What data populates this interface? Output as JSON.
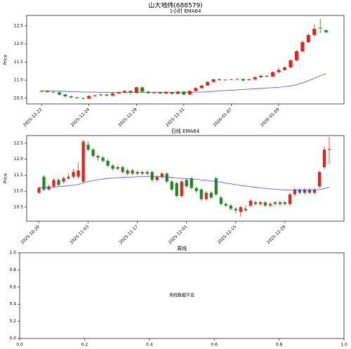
{
  "title": "山大地纬(688579)",
  "chart_data": [
    {
      "type": "candlestick",
      "title": "1小时 EMA64",
      "ylabel": "Price",
      "categories": [
        "2025-12-22",
        null,
        null,
        null,
        null,
        null,
        null,
        null,
        "2025-12-24",
        null,
        null,
        null,
        null,
        null,
        null,
        null,
        "2025-12-29",
        null,
        null,
        null,
        null,
        null,
        null,
        null,
        "2025-12-31",
        null,
        null,
        null,
        null,
        null,
        null,
        null,
        "2026-01-07",
        null,
        null,
        null,
        null,
        null,
        null,
        null,
        "2026-01-09",
        null,
        null,
        null,
        null,
        null,
        null,
        null,
        null
      ],
      "up_color": "#e8201a",
      "down_color": "#1a8a1a",
      "open": [
        10.68,
        10.7,
        10.67,
        10.66,
        10.6,
        10.55,
        10.52,
        10.5,
        10.49,
        10.56,
        10.58,
        10.6,
        10.57,
        10.63,
        10.66,
        10.7,
        10.65,
        10.8,
        10.68,
        10.64,
        10.66,
        10.63,
        10.67,
        10.62,
        10.68,
        10.6,
        10.7,
        10.78,
        10.85,
        10.95,
        11.02,
        11.0,
        11.01,
        11.02,
        11.03,
        11.0,
        11.02,
        11.08,
        11.12,
        11.1,
        11.22,
        11.28,
        11.35,
        11.55,
        11.8,
        12.05,
        12.25,
        12.45,
        12.38
      ],
      "high": [
        10.72,
        10.71,
        10.69,
        10.67,
        10.62,
        10.57,
        10.54,
        10.52,
        10.58,
        10.6,
        10.62,
        10.62,
        10.65,
        10.68,
        10.72,
        10.72,
        10.82,
        10.81,
        10.7,
        10.68,
        10.68,
        10.69,
        10.68,
        10.7,
        10.7,
        10.72,
        10.8,
        10.87,
        10.97,
        11.04,
        11.04,
        11.03,
        11.04,
        11.05,
        11.04,
        11.05,
        11.1,
        11.15,
        11.14,
        11.25,
        11.35,
        11.38,
        11.58,
        11.83,
        12.1,
        12.3,
        12.55,
        12.7,
        12.4
      ],
      "low": [
        10.66,
        10.65,
        10.64,
        10.58,
        10.53,
        10.5,
        10.48,
        10.47,
        10.48,
        10.54,
        10.56,
        10.55,
        10.56,
        10.61,
        10.64,
        10.6,
        10.63,
        10.66,
        10.62,
        10.62,
        10.61,
        10.62,
        10.6,
        10.61,
        10.58,
        10.59,
        10.69,
        10.76,
        10.84,
        10.93,
        10.98,
        10.99,
        11.0,
        11.0,
        10.97,
        10.99,
        11.01,
        11.06,
        11.08,
        11.09,
        11.2,
        11.26,
        11.33,
        11.52,
        11.78,
        12.02,
        12.2,
        12.3,
        12.3
      ],
      "close": [
        10.7,
        10.67,
        10.66,
        10.6,
        10.55,
        10.52,
        10.5,
        10.49,
        10.56,
        10.58,
        10.6,
        10.57,
        10.63,
        10.66,
        10.7,
        10.65,
        10.8,
        10.68,
        10.64,
        10.66,
        10.63,
        10.67,
        10.62,
        10.68,
        10.6,
        10.7,
        10.78,
        10.85,
        10.95,
        11.02,
        11.0,
        11.01,
        11.02,
        11.03,
        10.99,
        11.02,
        11.08,
        11.12,
        11.1,
        11.22,
        11.28,
        11.35,
        11.55,
        11.8,
        12.05,
        12.25,
        12.42,
        12.43,
        12.33
      ],
      "ema": {
        "color": "#3333ff",
        "values": [
          10.7,
          10.7,
          10.7,
          10.69,
          10.69,
          10.68,
          10.68,
          10.67,
          10.67,
          10.67,
          10.66,
          10.66,
          10.66,
          10.66,
          10.66,
          10.66,
          10.66,
          10.66,
          10.66,
          10.66,
          10.66,
          10.66,
          10.66,
          10.66,
          10.66,
          10.66,
          10.67,
          10.67,
          10.68,
          10.69,
          10.7,
          10.71,
          10.72,
          10.73,
          10.74,
          10.75,
          10.76,
          10.77,
          10.78,
          10.79,
          10.8,
          10.82,
          10.84,
          10.87,
          10.92,
          10.98,
          11.05,
          11.12,
          11.18
        ]
      },
      "ylim": [
        10.34,
        12.79
      ],
      "yticks": [
        10.5,
        {
          "value": 11,
          "label": "11.0"
        },
        11.5,
        {
          "value": 12,
          "label": "12.0"
        },
        12.5
      ]
    },
    {
      "type": "candlestick",
      "title": "日线 EMA64",
      "ylabel": "Price",
      "categories": [
        "2025-10-20",
        null,
        null,
        null,
        null,
        null,
        null,
        null,
        null,
        null,
        "2025-11-03",
        null,
        null,
        null,
        null,
        null,
        null,
        null,
        null,
        null,
        "2025-11-17",
        null,
        null,
        null,
        null,
        null,
        null,
        null,
        null,
        null,
        "2025-12-01",
        null,
        null,
        null,
        null,
        null,
        null,
        null,
        null,
        null,
        "2025-12-15",
        null,
        null,
        null,
        null,
        null,
        null,
        null,
        null,
        null,
        "2025-12-29",
        null,
        null,
        null,
        null,
        null,
        null,
        null,
        null,
        null
      ],
      "up_color": "#e8201a",
      "down_color": "#1a8a1a",
      "open": [
        10.95,
        11.45,
        11.05,
        11.15,
        11.35,
        11.3,
        11.4,
        11.45,
        11.45,
        11.3,
        12.45,
        12.3,
        12.1,
        12.05,
        11.95,
        11.8,
        11.7,
        11.75,
        11.55,
        11.65,
        11.55,
        11.6,
        11.55,
        11.6,
        11.35,
        11.45,
        11.55,
        11.3,
        11.25,
        10.85,
        11.35,
        11.4,
        11.1,
        11.05,
        10.75,
        10.95,
        11.4,
        10.8,
        10.6,
        10.55,
        10.45,
        10.35,
        10.45,
        10.55,
        10.65,
        10.6,
        10.65,
        10.55,
        10.65,
        10.6,
        10.65,
        10.6,
        10.9,
        11.05,
        10.95,
        11.05,
        10.95,
        11.15,
        11.75,
        12.3
      ],
      "high": [
        11.15,
        11.5,
        11.2,
        11.4,
        11.4,
        11.45,
        11.55,
        11.7,
        11.9,
        12.6,
        12.55,
        12.35,
        12.15,
        12.1,
        12.0,
        11.85,
        11.8,
        11.8,
        11.7,
        11.7,
        11.65,
        11.65,
        11.65,
        11.65,
        11.5,
        11.6,
        11.6,
        11.35,
        11.3,
        11.35,
        11.4,
        11.45,
        11.15,
        11.1,
        11.0,
        11.0,
        11.45,
        10.85,
        10.65,
        10.6,
        10.5,
        10.55,
        10.55,
        10.75,
        10.7,
        10.7,
        10.7,
        10.65,
        10.7,
        10.7,
        10.7,
        10.95,
        11.1,
        11.1,
        11.1,
        11.1,
        11.1,
        11.65,
        12.4,
        12.7
      ],
      "low": [
        10.92,
        11.0,
        11.02,
        11.1,
        11.15,
        11.25,
        11.35,
        11.4,
        11.4,
        11.25,
        12.25,
        12.05,
        11.95,
        11.9,
        11.75,
        11.65,
        11.65,
        11.55,
        11.5,
        11.5,
        11.5,
        11.5,
        11.5,
        11.3,
        11.3,
        11.4,
        11.25,
        11.0,
        10.8,
        10.8,
        11.1,
        11.05,
        10.95,
        10.7,
        10.7,
        10.75,
        10.85,
        10.55,
        10.5,
        10.4,
        10.3,
        10.2,
        10.35,
        10.5,
        10.55,
        10.55,
        10.5,
        10.5,
        10.55,
        10.55,
        10.55,
        10.55,
        10.85,
        10.9,
        10.9,
        10.9,
        10.9,
        11.1,
        11.7,
        11.85
      ],
      "close": [
        11.1,
        11.05,
        11.15,
        11.35,
        11.2,
        11.4,
        11.45,
        11.6,
        11.65,
        12.55,
        12.3,
        12.1,
        12.05,
        11.95,
        11.8,
        11.7,
        11.75,
        11.6,
        11.65,
        11.55,
        11.6,
        11.55,
        11.6,
        11.35,
        11.45,
        11.55,
        11.3,
        11.05,
        10.85,
        11.3,
        11.15,
        11.1,
        11.0,
        10.75,
        10.95,
        10.8,
        10.9,
        10.6,
        10.55,
        10.45,
        10.4,
        10.5,
        10.4,
        10.7,
        10.6,
        10.65,
        10.55,
        10.6,
        10.6,
        10.65,
        10.6,
        10.9,
        11.05,
        10.95,
        11.05,
        10.95,
        11.05,
        11.6,
        12.3,
        12.32
      ],
      "ema": {
        "color": "#3333ff",
        "values": [
          11.1,
          11.11,
          11.12,
          11.13,
          11.14,
          11.15,
          11.17,
          11.19,
          11.21,
          11.26,
          11.3,
          11.33,
          11.36,
          11.38,
          11.4,
          11.41,
          11.42,
          11.43,
          11.44,
          11.44,
          11.45,
          11.45,
          11.46,
          11.46,
          11.45,
          11.45,
          11.44,
          11.43,
          11.41,
          11.4,
          11.39,
          11.38,
          11.37,
          11.35,
          11.34,
          11.32,
          11.3,
          11.28,
          11.25,
          11.23,
          11.2,
          11.18,
          11.16,
          11.14,
          11.12,
          11.1,
          11.09,
          11.07,
          11.06,
          11.05,
          11.04,
          11.04,
          11.04,
          11.04,
          11.04,
          11.04,
          11.04,
          11.05,
          11.08,
          11.12
        ]
      },
      "ylim": [
        10.06,
        12.74
      ],
      "yticks": [
        10.5,
        {
          "value": 11,
          "label": "11.0"
        },
        11.5,
        {
          "value": 12,
          "label": "12.0"
        },
        12.5
      ]
    },
    {
      "type": "empty",
      "title": "周线",
      "annotation": "周线数据不足",
      "xlim": [
        0,
        1
      ],
      "ylim": [
        0,
        1
      ],
      "xticks": [
        {
          "value": 0,
          "label": "0.0"
        },
        0.2,
        0.4,
        0.6,
        0.8,
        {
          "value": 1,
          "label": "1.0"
        }
      ],
      "yticks": [
        {
          "value": 0,
          "label": "0.0"
        },
        0.2,
        0.4,
        0.6,
        0.8,
        {
          "value": 1,
          "label": "1.0"
        }
      ]
    }
  ]
}
